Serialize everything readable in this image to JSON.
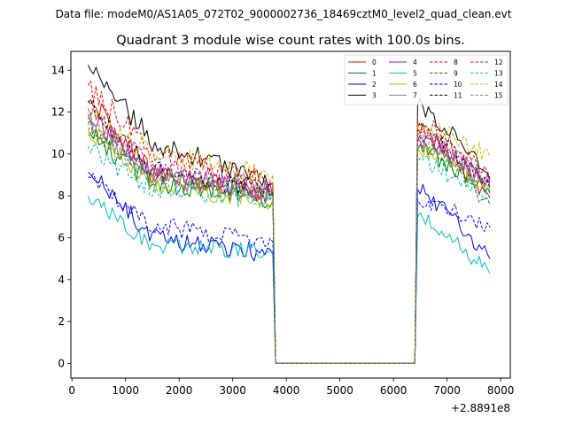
{
  "figure": {
    "suptitle": "Data file: modeM0/AS1A05_072T02_9000002736_18469cztM0_level2_quad_clean.evt"
  },
  "chart_data": {
    "type": "line",
    "title": "Quadrant 3 module wise count rates with 100.0s bins.",
    "xlabel": "",
    "ylabel": "",
    "x_offset_text": "+2.8891e8",
    "xlim": [
      -20,
      8180
    ],
    "ylim": [
      -0.7,
      14.9
    ],
    "xticks": [
      0,
      1000,
      2000,
      3000,
      4000,
      5000,
      6000,
      7000,
      8000
    ],
    "yticks": [
      0,
      2,
      4,
      6,
      8,
      10,
      12,
      14
    ],
    "gap": {
      "start": 3800,
      "end": 6400,
      "value": 0
    },
    "segments": [
      {
        "x_start": 300,
        "x_end": 3750,
        "step": 50
      },
      {
        "x_start": 6450,
        "x_end": 7800,
        "step": 50
      }
    ],
    "legend": {
      "location": "top-right",
      "columns": 4
    },
    "series": [
      {
        "name": "0",
        "color": "#ff0000",
        "style": "solid",
        "seg1": {
          "start": 12.6,
          "end": 8.0,
          "base": 9.0,
          "noise": 0.55
        },
        "seg2": {
          "start": 11.2,
          "end": 7.9,
          "noise": 0.45
        }
      },
      {
        "name": "1",
        "color": "#008000",
        "style": "solid",
        "seg1": {
          "start": 11.0,
          "end": 7.8,
          "base": 8.6,
          "noise": 0.5
        },
        "seg2": {
          "start": 10.2,
          "end": 8.2,
          "noise": 0.45
        }
      },
      {
        "name": "2",
        "color": "#0000ff",
        "style": "solid",
        "seg1": {
          "start": 9.2,
          "end": 5.2,
          "base": 6.0,
          "noise": 0.45
        },
        "seg2": {
          "start": 8.3,
          "end": 5.0,
          "noise": 0.4
        }
      },
      {
        "name": "3",
        "color": "#000000",
        "style": "solid",
        "seg1": {
          "start": 14.3,
          "end": 8.6,
          "base": 10.6,
          "noise": 0.5
        },
        "seg2": {
          "start": 12.4,
          "end": 8.8,
          "noise": 0.5
        }
      },
      {
        "name": "4",
        "color": "#bf00bf",
        "style": "solid",
        "seg1": {
          "start": 11.9,
          "end": 8.0,
          "base": 9.2,
          "noise": 0.5
        },
        "seg2": {
          "start": 10.8,
          "end": 8.6,
          "noise": 0.45
        }
      },
      {
        "name": "5",
        "color": "#00bfbf",
        "style": "solid",
        "seg1": {
          "start": 8.0,
          "end": 5.3,
          "base": 5.6,
          "noise": 0.4
        },
        "seg2": {
          "start": 7.0,
          "end": 4.3,
          "noise": 0.4
        }
      },
      {
        "name": "6",
        "color": "#bfbf00",
        "style": "solid",
        "seg1": {
          "start": 11.2,
          "end": 7.8,
          "base": 8.6,
          "noise": 0.5
        },
        "seg2": {
          "start": 10.3,
          "end": 8.3,
          "noise": 0.45
        }
      },
      {
        "name": "7",
        "color": "#808080",
        "style": "solid",
        "seg1": {
          "start": 11.6,
          "end": 7.9,
          "base": 8.9,
          "noise": 0.5
        },
        "seg2": {
          "start": 10.7,
          "end": 8.5,
          "noise": 0.45
        }
      },
      {
        "name": "8",
        "color": "#ff0000",
        "style": "dashed",
        "seg1": {
          "start": 13.2,
          "end": 8.6,
          "base": 10.2,
          "noise": 0.55
        },
        "seg2": {
          "start": 11.6,
          "end": 8.9,
          "noise": 0.45
        }
      },
      {
        "name": "9",
        "color": "#008000",
        "style": "dashed",
        "seg1": {
          "start": 11.4,
          "end": 8.2,
          "base": 9.0,
          "noise": 0.5
        },
        "seg2": {
          "start": 10.6,
          "end": 7.6,
          "noise": 0.45
        }
      },
      {
        "name": "10",
        "color": "#0000ff",
        "style": "dashed",
        "seg1": {
          "start": 8.8,
          "end": 5.8,
          "base": 6.6,
          "noise": 0.45
        },
        "seg2": {
          "start": 7.8,
          "end": 6.5,
          "noise": 0.4
        }
      },
      {
        "name": "11",
        "color": "#000000",
        "style": "dashed",
        "seg1": {
          "start": 12.4,
          "end": 8.2,
          "base": 9.3,
          "noise": 0.5
        },
        "seg2": {
          "start": 11.3,
          "end": 8.4,
          "noise": 0.45
        }
      },
      {
        "name": "12",
        "color": "#bf00bf",
        "style": "dashed",
        "seg1": {
          "start": 12.0,
          "end": 8.3,
          "base": 9.4,
          "noise": 0.5
        },
        "seg2": {
          "start": 11.0,
          "end": 8.7,
          "noise": 0.45
        }
      },
      {
        "name": "13",
        "color": "#00bfbf",
        "style": "dashed",
        "seg1": {
          "start": 10.2,
          "end": 7.8,
          "base": 8.4,
          "noise": 0.5
        },
        "seg2": {
          "start": 9.6,
          "end": 8.1,
          "noise": 0.45
        }
      },
      {
        "name": "14",
        "color": "#bfbf00",
        "style": "dashed",
        "seg1": {
          "start": 12.0,
          "end": 9.0,
          "base": 10.0,
          "noise": 0.55
        },
        "seg2": {
          "start": 11.4,
          "end": 9.9,
          "noise": 0.5
        }
      },
      {
        "name": "15",
        "color": "#808080",
        "style": "dashed",
        "seg1": {
          "start": 11.3,
          "end": 8.2,
          "base": 9.1,
          "noise": 0.5
        },
        "seg2": {
          "start": 10.9,
          "end": 8.7,
          "noise": 0.45
        }
      }
    ]
  }
}
